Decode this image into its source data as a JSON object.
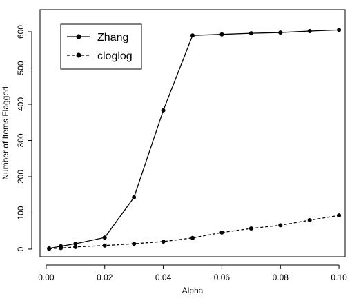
{
  "chart_data": {
    "type": "line",
    "x_label": "Alpha",
    "y_label": "Number of Items Flagged",
    "x": [
      0.001,
      0.005,
      0.01,
      0.02,
      0.03,
      0.04,
      0.05,
      0.06,
      0.07,
      0.08,
      0.09,
      0.1
    ],
    "series": [
      {
        "name": "Zhang",
        "color": "#000000",
        "dash": false,
        "values": [
          2,
          8,
          15,
          32,
          143,
          383,
          590,
          593,
          596,
          598,
          602,
          605
        ]
      },
      {
        "name": "cloglog",
        "color": "#000000",
        "dash": true,
        "values": [
          1,
          3,
          6,
          10,
          15,
          21,
          31,
          46,
          57,
          66,
          80,
          93
        ]
      }
    ],
    "xlim": [
      -0.0021,
      0.1021
    ],
    "xticks": [
      {
        "value": 0,
        "label": "0.00"
      },
      {
        "value": 0.02,
        "label": "0.02"
      },
      {
        "value": 0.04,
        "label": "0.04"
      },
      {
        "value": 0.06,
        "label": "0.06"
      },
      {
        "value": 0.08,
        "label": "0.08"
      },
      {
        "value": 0.1,
        "label": "0.10"
      }
    ],
    "ylim": [
      -21,
      661
    ],
    "yticks": [
      0,
      100,
      200,
      300,
      400,
      500,
      600
    ],
    "legend": "top-left",
    "grid": false
  }
}
